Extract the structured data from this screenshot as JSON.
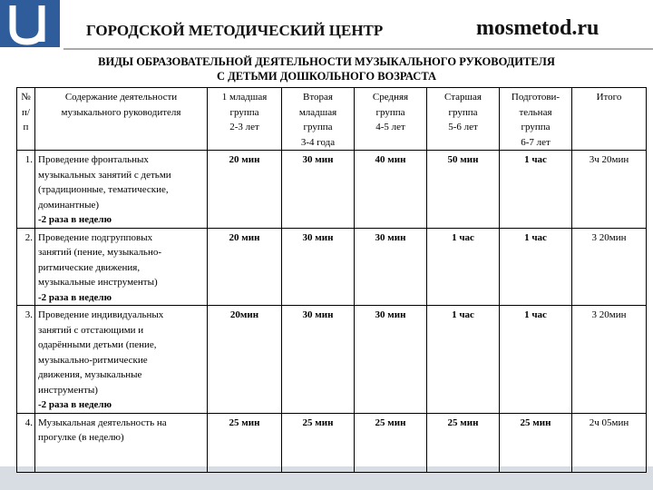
{
  "header": {
    "title": "ГОРОДСКОЙ МЕТОДИЧЕСКИЙ ЦЕНТР",
    "site": "mosmetod.ru"
  },
  "heading": [
    "ВИДЫ ОБРАЗОВАТЕЛЬНОЙ ДЕЯТЕЛЬНОСТИ МУЗЫКАЛЬНОГО РУКОВОДИТЕЛЯ",
    "С ДЕТЬМИ ДОШКОЛЬНОГО ВОЗРАСТА"
  ],
  "table": {
    "columns": [
      [
        "№",
        "п/",
        "п"
      ],
      [
        "Содержание деятельности",
        "музыкального руководителя"
      ],
      [
        "1 младшая",
        "группа",
        "2-3 лет"
      ],
      [
        "Вторая",
        "младшая",
        "группа",
        "3-4 года"
      ],
      [
        "Средняя",
        "группа",
        "4-5 лет"
      ],
      [
        "Старшая",
        "группа",
        "5-6 лет"
      ],
      [
        "Подготови-",
        "тельная",
        "группа",
        "6-7 лет"
      ],
      [
        "Итого"
      ]
    ],
    "rows": [
      {
        "num": "1.",
        "content": [
          "Проведение фронтальных",
          "музыкальных занятий с детьми",
          "(традиционные, тематические,",
          "доминантные)"
        ],
        "note": "-2 раза в неделю",
        "values": [
          "20 мин",
          "30 мин",
          "40 мин",
          "50 мин",
          "1 час",
          "3ч 20мин"
        ]
      },
      {
        "num": "2.",
        "content": [
          "Проведение подгрупповых",
          "занятий (пение, музыкально-",
          "ритмические движения,",
          "музыкальные инструменты)"
        ],
        "note": "-2 раза в неделю",
        "values": [
          "20 мин",
          "30 мин",
          "30 мин",
          "1 час",
          "1 час",
          "3 20мин"
        ]
      },
      {
        "num": "3.",
        "content": [
          "Проведение индивидуальных",
          "занятий с отстающими и",
          "одарёнными детьми (пение,",
          "музыкально-ритмические",
          "движения, музыкальные",
          "инструменты)"
        ],
        "note": "-2 раза в неделю",
        "values": [
          "20мин",
          "30 мин",
          "30 мин",
          "1 час",
          "1 час",
          "3 20мин"
        ]
      },
      {
        "num": "4.",
        "content": [
          "Музыкальная деятельность на",
          "прогулке (в неделю)"
        ],
        "values": [
          "25 мин",
          "25 мин",
          "25 мин",
          "25 мин",
          "25 мин",
          "2ч 05мин"
        ]
      }
    ]
  }
}
